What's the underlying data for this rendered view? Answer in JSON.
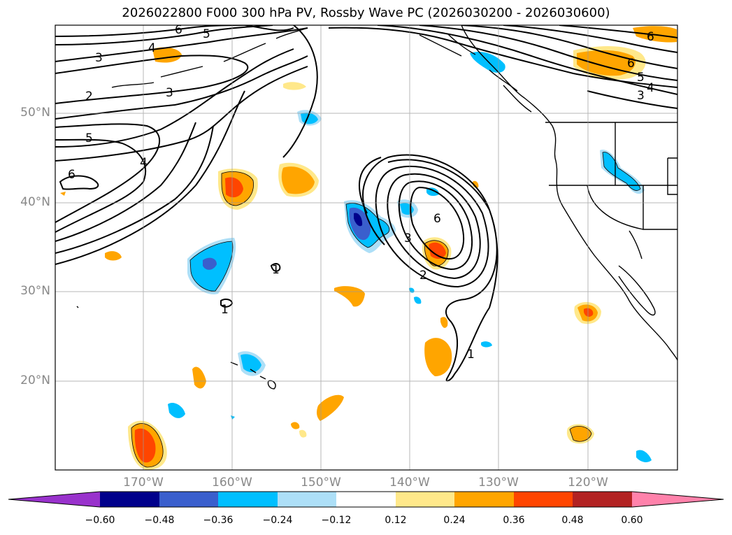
{
  "title": "2026022800 F000 300 hPa PV, Rossby Wave PC (2026030200 - 2026030600)",
  "lat_labels": [
    "50°N",
    "40°N",
    "30°N",
    "20°N"
  ],
  "lon_labels": [
    "170°W",
    "160°W",
    "150°W",
    "140°W",
    "130°W",
    "120°W"
  ],
  "colorbar": {
    "ticks": [
      "−0.60",
      "−0.48",
      "−0.36",
      "−0.24",
      "−0.12",
      "0.12",
      "0.24",
      "0.36",
      "0.48",
      "0.60"
    ],
    "colors": [
      "#9932CC",
      "#00008B",
      "#3A5FCD",
      "#00BFFF",
      "#ADDFF7",
      "#FFFFFF",
      "#FFE88A",
      "#FFA500",
      "#FF4500",
      "#B22222",
      "#FF82AB"
    ]
  },
  "contour_labels": [
    "6",
    "5",
    "4",
    "3",
    "2",
    "5",
    "4",
    "3",
    "6",
    "6",
    "5",
    "4",
    "3",
    "6",
    "6",
    "3",
    "2",
    "1",
    "1",
    "1"
  ]
}
